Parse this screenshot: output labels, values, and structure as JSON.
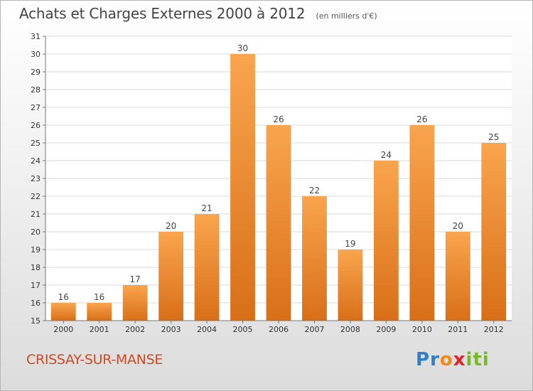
{
  "title": "Achats et Charges Externes 2000 à 2012",
  "subtitle": "(en milliers d'€)",
  "commune": "CRISSAY-SUR-MANSE",
  "logo": {
    "text": "Proxiti",
    "letters": [
      {
        "ch": "P",
        "color": "#2f7fc8"
      },
      {
        "ch": "r",
        "color": "#2f7fc8"
      },
      {
        "ch": "o",
        "color": "#f08a1e"
      },
      {
        "ch": "x",
        "color": "#e0262b"
      },
      {
        "ch": "i",
        "color": "#77b82a"
      },
      {
        "ch": "t",
        "color": "#77b82a"
      },
      {
        "ch": "i",
        "color": "#77b82a"
      }
    ]
  },
  "colors": {
    "bar_top": "#f9a54e",
    "bar_bottom": "#d86f18",
    "grid": "#d9d9d9",
    "axis": "#777777",
    "title": "#444444",
    "commune": "#d0491f"
  },
  "chart_data": {
    "type": "bar",
    "categories": [
      "2000",
      "2001",
      "2002",
      "2003",
      "2004",
      "2005",
      "2006",
      "2007",
      "2008",
      "2009",
      "2010",
      "2011",
      "2012"
    ],
    "values": [
      16,
      16,
      17,
      20,
      21,
      30,
      26,
      22,
      19,
      24,
      26,
      20,
      25
    ],
    "ylim": [
      15,
      31
    ],
    "yticks": [
      15,
      16,
      17,
      18,
      19,
      20,
      21,
      22,
      23,
      24,
      25,
      26,
      27,
      28,
      29,
      30,
      31
    ],
    "grid": true,
    "data_labels": true
  }
}
